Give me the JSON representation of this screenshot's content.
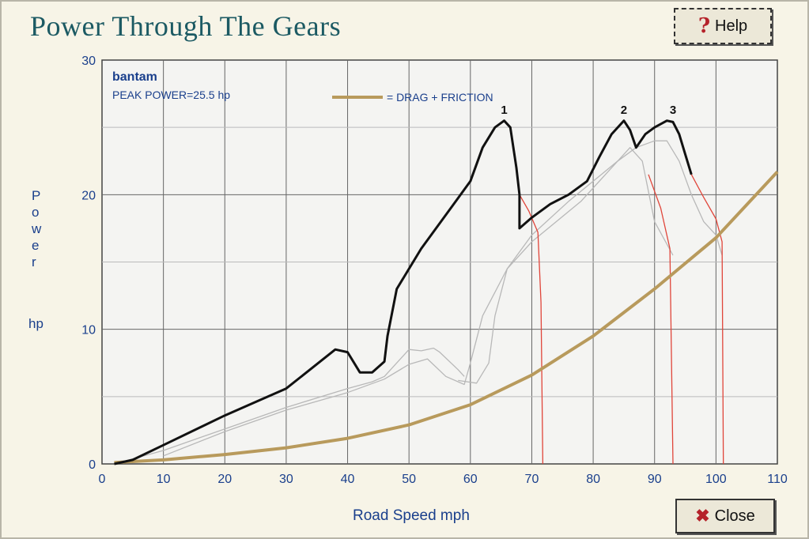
{
  "window": {
    "title": "Power Through The Gears",
    "help_label": "Help",
    "close_label": "Close",
    "help_icon": "question-mark-icon",
    "close_icon": "close-x-icon"
  },
  "chart_data": {
    "type": "line",
    "vehicle_name": "bantam",
    "peak_power_label": "PEAK POWER=25.5 hp",
    "legend_label": "= DRAG + FRICTION",
    "xlabel": "Road Speed   mph",
    "ylabel_letters": [
      "P",
      "o",
      "w",
      "e",
      "r"
    ],
    "ylabel_unit": "hp",
    "xlim": [
      0,
      110
    ],
    "ylim": [
      0,
      30
    ],
    "x_ticks": [
      0,
      10,
      20,
      30,
      40,
      50,
      60,
      70,
      80,
      90,
      100,
      110
    ],
    "y_ticks": [
      0,
      10,
      20,
      30
    ],
    "grid": true,
    "colors": {
      "power_curve": "#111111",
      "drag_curve": "#b89a5c",
      "gear_curve": "#b8b8b8",
      "drop_curve": "#e0453a",
      "axis_text": "#1a3f8c",
      "plot_bg": "#f4f4f2"
    },
    "series": [
      {
        "role": "drag_friction",
        "points": [
          [
            2,
            0.1
          ],
          [
            10,
            0.3
          ],
          [
            20,
            0.7
          ],
          [
            30,
            1.2
          ],
          [
            40,
            1.9
          ],
          [
            50,
            2.9
          ],
          [
            60,
            4.4
          ],
          [
            70,
            6.6
          ],
          [
            80,
            9.5
          ],
          [
            90,
            13.0
          ],
          [
            100,
            16.8
          ],
          [
            110,
            21.7
          ]
        ]
      },
      {
        "role": "power",
        "points": [
          [
            2,
            0
          ],
          [
            5,
            0.3
          ],
          [
            10,
            1.4
          ],
          [
            20,
            3.6
          ],
          [
            30,
            5.6
          ],
          [
            38,
            8.5
          ],
          [
            40,
            8.3
          ],
          [
            42,
            6.8
          ],
          [
            44,
            6.8
          ],
          [
            46,
            7.6
          ],
          [
            46.5,
            9.5
          ],
          [
            48,
            13.0
          ],
          [
            52,
            16.0
          ],
          [
            56,
            18.5
          ],
          [
            60,
            21.0
          ],
          [
            62,
            23.5
          ],
          [
            64,
            25.0
          ],
          [
            65.5,
            25.5
          ],
          [
            66.5,
            25.0
          ],
          [
            67.5,
            22.0
          ],
          [
            68,
            20.0
          ],
          [
            68,
            17.5
          ],
          [
            70,
            18.3
          ],
          [
            73,
            19.3
          ],
          [
            76,
            20.0
          ],
          [
            79,
            21.0
          ],
          [
            81,
            22.8
          ],
          [
            83,
            24.5
          ],
          [
            85,
            25.5
          ],
          [
            86,
            24.8
          ],
          [
            87,
            23.5
          ],
          [
            88.5,
            24.5
          ],
          [
            90,
            25.0
          ],
          [
            92,
            25.5
          ],
          [
            93,
            25.4
          ],
          [
            94,
            24.5
          ],
          [
            95,
            23.0
          ],
          [
            96,
            21.5
          ]
        ]
      },
      {
        "role": "gear",
        "points": [
          [
            2,
            0
          ],
          [
            10,
            1.0
          ],
          [
            20,
            2.6
          ],
          [
            30,
            4.2
          ],
          [
            40,
            5.6
          ],
          [
            44,
            6.1
          ],
          [
            46,
            6.5
          ],
          [
            50,
            8.5
          ],
          [
            52,
            8.4
          ],
          [
            54,
            8.6
          ],
          [
            55,
            8.3
          ],
          [
            58,
            7.0
          ],
          [
            59,
            6.5
          ]
        ]
      },
      {
        "role": "gear",
        "points": [
          [
            10,
            0.6
          ],
          [
            20,
            2.4
          ],
          [
            30,
            4.0
          ],
          [
            40,
            5.3
          ],
          [
            46,
            6.3
          ],
          [
            50,
            7.4
          ],
          [
            53,
            7.8
          ],
          [
            56,
            6.5
          ],
          [
            59,
            5.9
          ],
          [
            60,
            7.5
          ],
          [
            62,
            11.0
          ],
          [
            66,
            14.5
          ],
          [
            70,
            16.5
          ],
          [
            74,
            18.0
          ],
          [
            78,
            19.5
          ],
          [
            82,
            21.5
          ],
          [
            86,
            23.5
          ],
          [
            88,
            22.5
          ],
          [
            90,
            18.0
          ],
          [
            93,
            15.5
          ]
        ]
      },
      {
        "role": "gear",
        "points": [
          [
            58,
            6.2
          ],
          [
            61,
            6.0
          ],
          [
            63,
            7.5
          ],
          [
            64,
            11.0
          ],
          [
            66,
            14.5
          ],
          [
            70,
            17.0
          ],
          [
            76,
            19.5
          ],
          [
            80,
            21.0
          ],
          [
            84,
            22.5
          ],
          [
            87,
            23.5
          ],
          [
            90,
            24.0
          ],
          [
            92,
            24.0
          ],
          [
            94,
            22.5
          ],
          [
            96,
            20.0
          ],
          [
            98,
            18.0
          ],
          [
            100,
            17.0
          ],
          [
            101,
            15.5
          ]
        ]
      },
      {
        "role": "drop",
        "points": [
          [
            68,
            20.0
          ],
          [
            69.5,
            18.8
          ],
          [
            71,
            17.2
          ],
          [
            71.5,
            12.0
          ],
          [
            71.8,
            0
          ]
        ]
      },
      {
        "role": "drop",
        "points": [
          [
            89,
            21.5
          ],
          [
            91,
            19.0
          ],
          [
            92.5,
            16.0
          ],
          [
            93,
            0
          ]
        ]
      },
      {
        "role": "drop",
        "points": [
          [
            96,
            21.5
          ],
          [
            98,
            19.8
          ],
          [
            100,
            18.2
          ],
          [
            101,
            16.5
          ],
          [
            101.2,
            0
          ]
        ]
      }
    ],
    "gear_labels": [
      {
        "text": "1",
        "x": 65.5,
        "y": 26.0
      },
      {
        "text": "2",
        "x": 85,
        "y": 26.0
      },
      {
        "text": "3",
        "x": 93,
        "y": 26.0
      }
    ]
  }
}
